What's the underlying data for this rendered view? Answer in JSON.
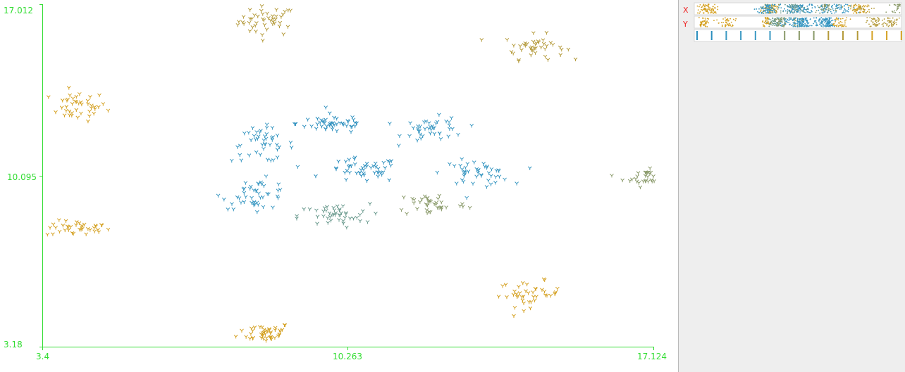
{
  "panel": {
    "x_label": "X",
    "y_label": "Y"
  },
  "colors": {
    "axis": "#33dd33",
    "panel_bg": "#eeeeee",
    "panel_letters": "#ee2222",
    "cluster_palette": [
      "#d4a020",
      "#b49a3a",
      "#8a9a6a",
      "#3a98c2",
      "#2c8fbe"
    ]
  },
  "chart_data": {
    "type": "scatter",
    "marker": "x",
    "xlim": [
      3.4,
      17.124
    ],
    "ylim": [
      3.18,
      17.012
    ],
    "x_ticks": [
      "3.4",
      "10.263",
      "17.124"
    ],
    "y_ticks": [
      "3.18",
      "10.095",
      "17.012"
    ],
    "grid": false,
    "clusters": [
      {
        "cx": 8.45,
        "cy": 16.35,
        "sx": 0.32,
        "sy": 0.3,
        "n": 45,
        "color": "#b49a3a"
      },
      {
        "cx": 4.2,
        "cy": 12.9,
        "sx": 0.32,
        "sy": 0.3,
        "n": 42,
        "color": "#d4a020"
      },
      {
        "cx": 4.2,
        "cy": 7.95,
        "sx": 0.36,
        "sy": 0.16,
        "n": 38,
        "color": "#d4a020"
      },
      {
        "cx": 8.4,
        "cy": 3.75,
        "sx": 0.3,
        "sy": 0.2,
        "n": 45,
        "color": "#d4a020"
      },
      {
        "cx": 14.45,
        "cy": 15.3,
        "sx": 0.34,
        "sy": 0.25,
        "n": 42,
        "color": "#b49a3a"
      },
      {
        "cx": 17.0,
        "cy": 10.05,
        "sx": 0.28,
        "sy": 0.2,
        "n": 36,
        "color": "#8a9a6a"
      },
      {
        "cx": 14.35,
        "cy": 5.3,
        "sx": 0.35,
        "sy": 0.26,
        "n": 42,
        "color": "#d4a020"
      },
      {
        "cx": 8.35,
        "cy": 11.35,
        "sx": 0.35,
        "sy": 0.35,
        "n": 45,
        "color": "#3a98c2"
      },
      {
        "cx": 9.95,
        "cy": 12.2,
        "sx": 0.42,
        "sy": 0.2,
        "n": 48,
        "color": "#2c8fbe"
      },
      {
        "cx": 10.6,
        "cy": 10.3,
        "sx": 0.4,
        "sy": 0.25,
        "n": 48,
        "color": "#2c8fbe"
      },
      {
        "cx": 12.2,
        "cy": 11.95,
        "sx": 0.35,
        "sy": 0.25,
        "n": 42,
        "color": "#3a98c2"
      },
      {
        "cx": 8.2,
        "cy": 9.35,
        "sx": 0.38,
        "sy": 0.3,
        "n": 46,
        "color": "#3a98c2"
      },
      {
        "cx": 13.15,
        "cy": 10.2,
        "sx": 0.38,
        "sy": 0.25,
        "n": 46,
        "color": "#3a98c2"
      },
      {
        "cx": 9.95,
        "cy": 8.45,
        "sx": 0.4,
        "sy": 0.25,
        "n": 46,
        "color": "#6a9a8e"
      },
      {
        "cx": 12.15,
        "cy": 8.95,
        "sx": 0.4,
        "sy": 0.25,
        "n": 40,
        "color": "#8a9a6a"
      }
    ]
  }
}
